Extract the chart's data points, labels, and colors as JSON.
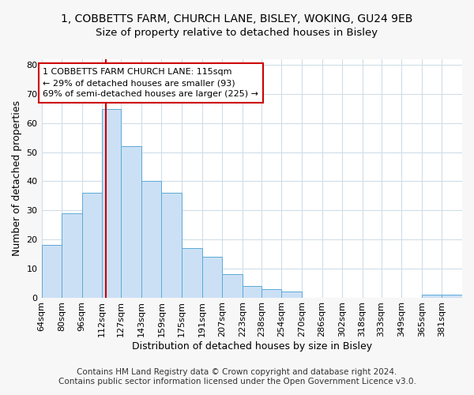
{
  "title_line1": "1, COBBETTS FARM, CHURCH LANE, BISLEY, WOKING, GU24 9EB",
  "title_line2": "Size of property relative to detached houses in Bisley",
  "xlabel": "Distribution of detached houses by size in Bisley",
  "ylabel": "Number of detached properties",
  "bin_labels": [
    "64sqm",
    "80sqm",
    "96sqm",
    "112sqm",
    "127sqm",
    "143sqm",
    "159sqm",
    "175sqm",
    "191sqm",
    "207sqm",
    "223sqm",
    "238sqm",
    "254sqm",
    "270sqm",
    "286sqm",
    "302sqm",
    "318sqm",
    "333sqm",
    "349sqm",
    "365sqm",
    "381sqm"
  ],
  "bin_edges": [
    64,
    80,
    96,
    112,
    127,
    143,
    159,
    175,
    191,
    207,
    223,
    238,
    254,
    270,
    286,
    302,
    318,
    333,
    349,
    365,
    381,
    397
  ],
  "bar_heights": [
    18,
    29,
    36,
    65,
    52,
    40,
    36,
    17,
    14,
    8,
    4,
    3,
    2,
    0,
    0,
    0,
    0,
    0,
    0,
    1,
    1
  ],
  "bar_facecolor": "#cce0f5",
  "bar_edgecolor": "#5baad8",
  "property_size": 115,
  "vline_color": "#cc0000",
  "annotation_text": "1 COBBETTS FARM CHURCH LANE: 115sqm\n← 29% of detached houses are smaller (93)\n69% of semi-detached houses are larger (225) →",
  "annotation_box_edgecolor": "#cc0000",
  "annotation_box_facecolor": "#ffffff",
  "ylim": [
    0,
    82
  ],
  "yticks": [
    0,
    10,
    20,
    30,
    40,
    50,
    60,
    70,
    80
  ],
  "footer_text": "Contains HM Land Registry data © Crown copyright and database right 2024.\nContains public sector information licensed under the Open Government Licence v3.0.",
  "background_color": "#f7f7f7",
  "plot_background_color": "#ffffff",
  "grid_color": "#d0dde8",
  "title_fontsize": 10,
  "subtitle_fontsize": 9.5,
  "axis_label_fontsize": 9,
  "tick_fontsize": 8,
  "annotation_fontsize": 8,
  "footer_fontsize": 7.5
}
